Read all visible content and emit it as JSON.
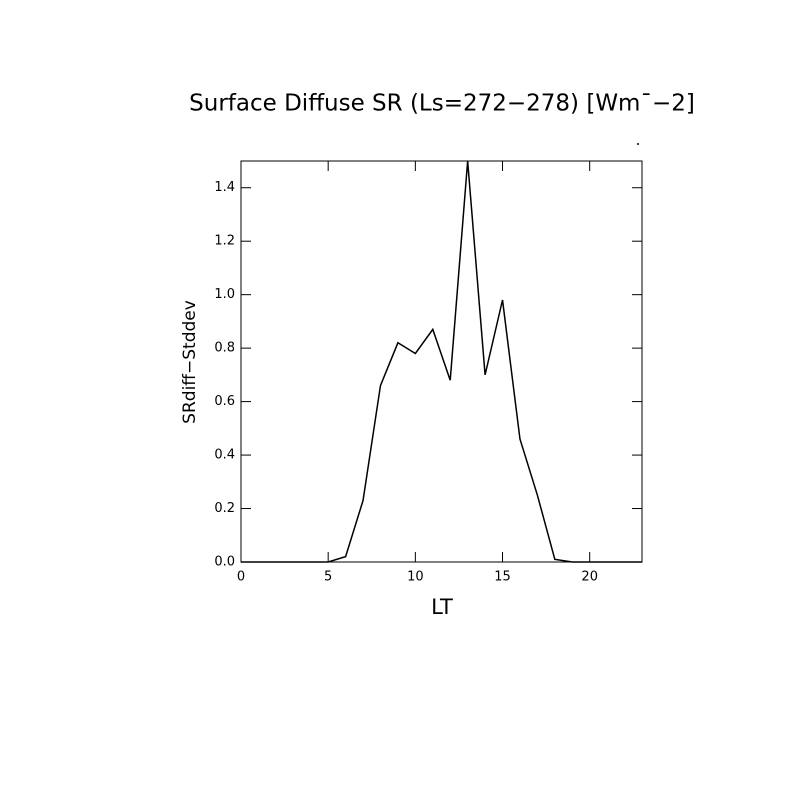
{
  "chart_data": {
    "type": "line",
    "title": "Surface Diffuse SR (Ls=272−278) [Wm¯−2]",
    "x_label": "LT",
    "y_label": "SRdiff−Stddev",
    "x": [
      0,
      1,
      2,
      3,
      4,
      5,
      6,
      7,
      8,
      9,
      10,
      11,
      12,
      13,
      14,
      15,
      16,
      17,
      18,
      19,
      20,
      21,
      22,
      23
    ],
    "series": [
      {
        "name": "SRdiff-Stddev",
        "color": "#000000",
        "values": [
          0,
          0,
          0,
          0,
          0,
          0,
          0.02,
          0.23,
          0.66,
          0.82,
          0.78,
          0.87,
          0.68,
          1.5,
          0.7,
          0.98,
          0.46,
          0.25,
          0.01,
          0,
          0,
          0,
          0,
          0
        ]
      }
    ],
    "xlim": [
      0,
      23
    ],
    "xticks": [
      0,
      5,
      10,
      15,
      20
    ],
    "ylim": [
      0,
      1.5
    ],
    "yticks": [
      {
        "value": 0,
        "label": "0.0"
      },
      {
        "value": 0.2,
        "label": "0.2"
      },
      {
        "value": 0.4,
        "label": "0.4"
      },
      {
        "value": 0.6,
        "label": "0.6"
      },
      {
        "value": 0.8,
        "label": "0.8"
      },
      {
        "value": 1.0,
        "label": "1.0"
      },
      {
        "value": 1.2,
        "label": "1.2"
      },
      {
        "value": 1.4,
        "label": "1.4"
      }
    ]
  }
}
